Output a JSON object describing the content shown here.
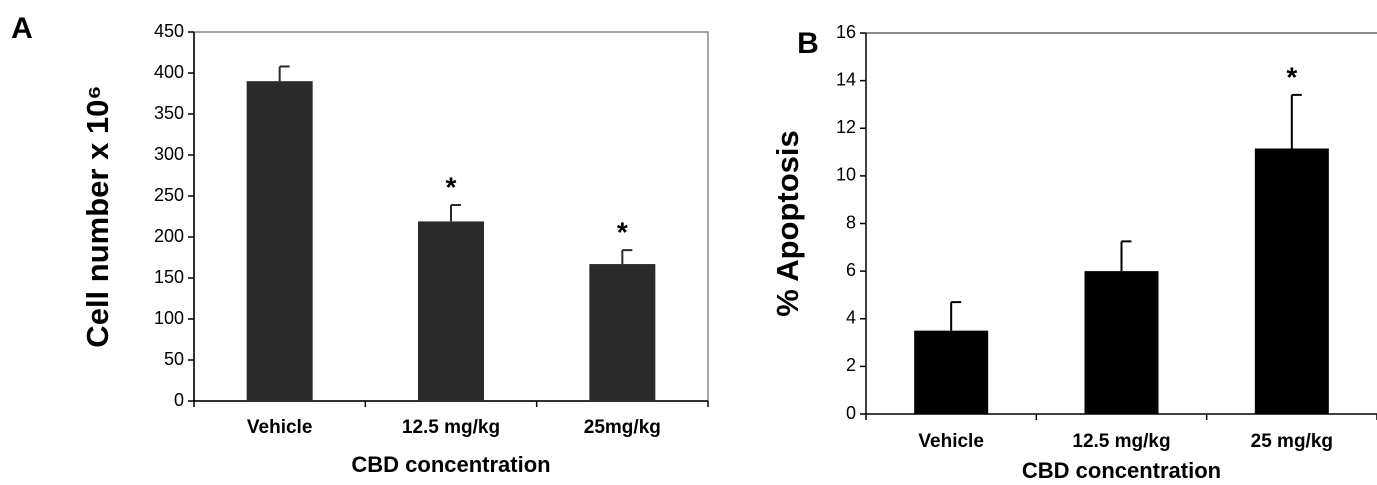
{
  "chart_data": [
    {
      "type": "bar",
      "panel": "A",
      "y_label": "Cell number x 10⁶",
      "x_label": "CBD concentration",
      "categories": [
        "Vehicle",
        "12.5 mg/kg",
        "25mg/kg"
      ],
      "values": [
        390,
        219,
        167
      ],
      "errors": [
        18,
        20,
        17
      ],
      "significance": [
        null,
        "*",
        "*"
      ],
      "color": "#2a2a2a",
      "ylim": [
        0,
        450
      ],
      "yticks": [
        0,
        50,
        100,
        150,
        200,
        250,
        300,
        350,
        400,
        450
      ]
    },
    {
      "type": "bar",
      "panel": "B",
      "y_label": "% Apoptosis",
      "x_label": "CBD concentration",
      "categories": [
        "Vehicle",
        "12.5 mg/kg",
        "25 mg/kg"
      ],
      "values": [
        3.5,
        6.0,
        11.15
      ],
      "errors": [
        1.2,
        1.25,
        2.25
      ],
      "significance": [
        null,
        null,
        "*"
      ],
      "color": "#000000",
      "ylim": [
        0,
        16
      ],
      "yticks": [
        0,
        2,
        4,
        6,
        8,
        10,
        12,
        14,
        16
      ]
    }
  ]
}
